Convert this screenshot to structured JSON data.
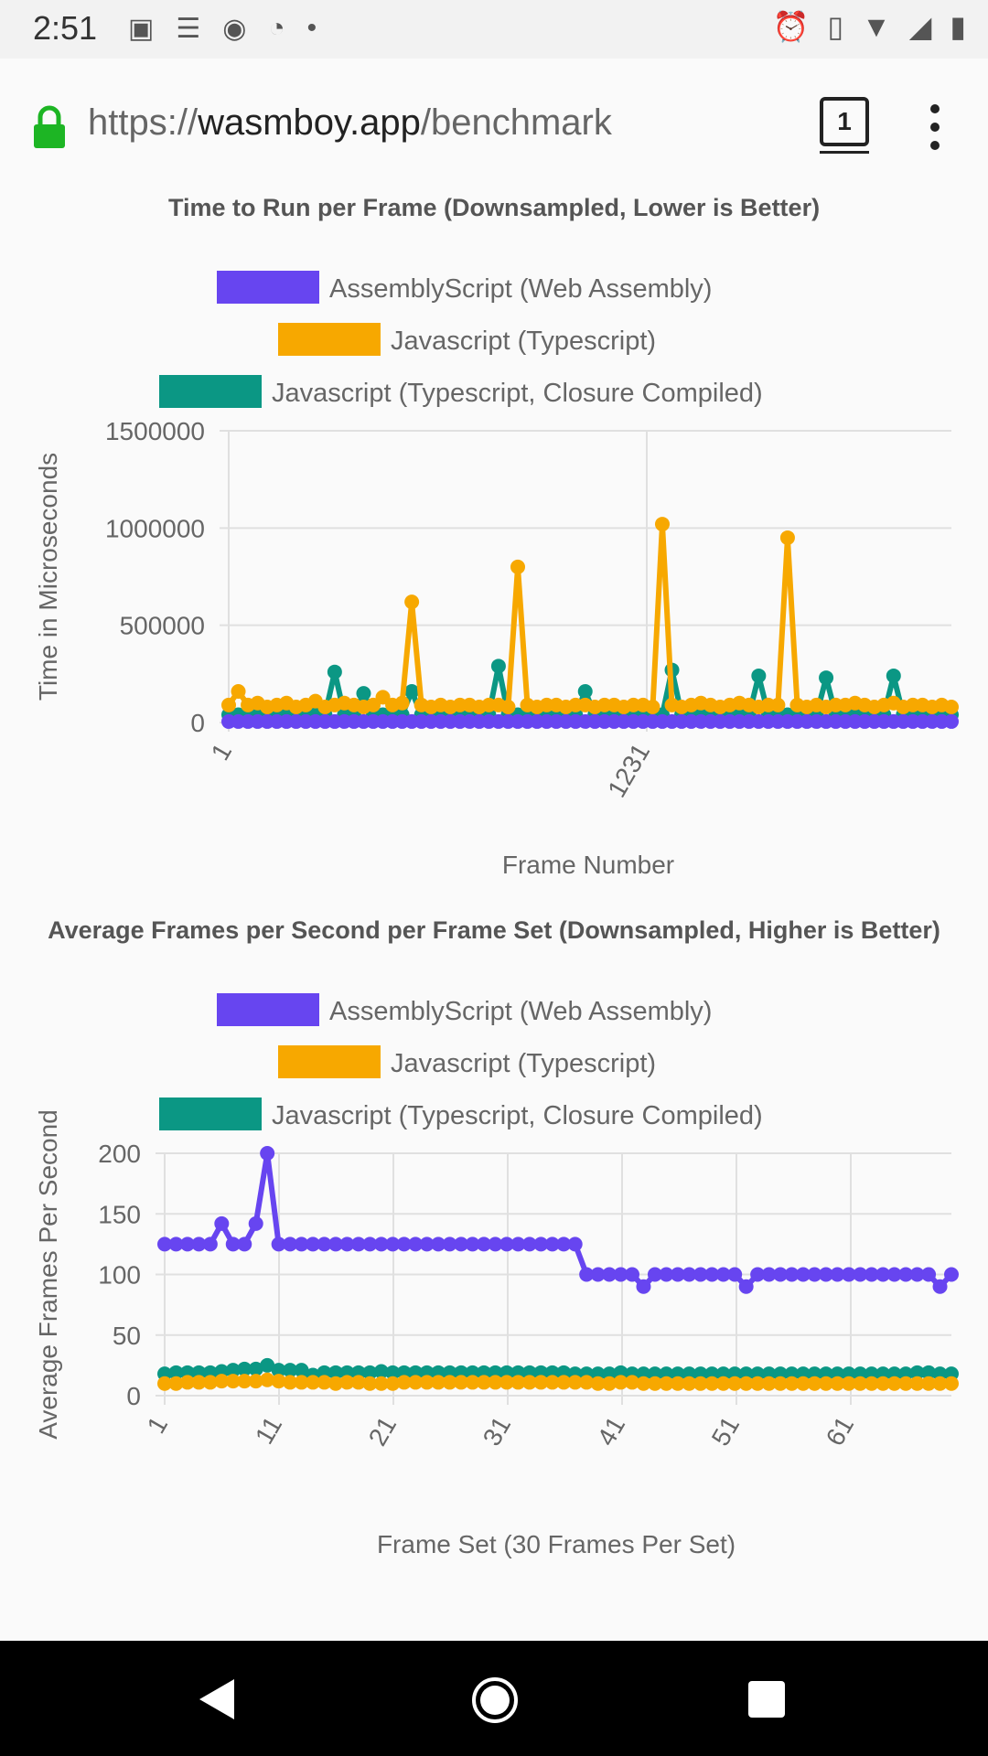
{
  "status_bar": {
    "time": "2:51",
    "left_icons": [
      "image-icon",
      "news-icon",
      "messenger-icon",
      "data-saver-icon",
      "dot-icon"
    ],
    "right_icons": [
      "alarm-icon",
      "vibrate-icon",
      "wifi-icon",
      "signal-icon",
      "battery-icon"
    ]
  },
  "browser": {
    "url_scheme": "https://",
    "url_host": "wasmboy.app",
    "url_path": "/benchmark",
    "tab_count": "1",
    "lock_color": "#1db524"
  },
  "colors": {
    "assemblyscript": "#6745f0",
    "javascript": "#f7a800",
    "closure": "#0b9784"
  },
  "chart1": {
    "title": "Time to Run per Frame (Downsampled, Lower is Better)",
    "legend": [
      "AssemblyScript (Web Assembly)",
      "Javascript (Typescript)",
      "Javascript (Typescript, Closure Compiled)"
    ],
    "ylabel": "Time in Microseconds",
    "xlabel": "Frame Number",
    "yticks": [
      "1500000",
      "1000000",
      "500000",
      "0"
    ],
    "xticks": [
      "1",
      "1231"
    ]
  },
  "chart2": {
    "title": "Average Frames per Second per Frame Set (Downsampled, Higher is Better)",
    "legend": [
      "AssemblyScript (Web Assembly)",
      "Javascript (Typescript)",
      "Javascript (Typescript, Closure Compiled)"
    ],
    "ylabel": "Average Frames Per Second",
    "xlabel": "Frame Set (30 Frames Per Set)",
    "yticks": [
      "200",
      "150",
      "100",
      "50",
      "0"
    ],
    "xticks": [
      "1",
      "11",
      "21",
      "31",
      "41",
      "51",
      "61"
    ]
  },
  "chart_data": [
    {
      "type": "line",
      "title": "Time to Run per Frame (Downsampled, Lower is Better)",
      "xlabel": "Frame Number",
      "ylabel": "Time in Microseconds",
      "ylim": [
        0,
        1500000
      ],
      "x_tick_labels": [
        "1",
        "1231"
      ],
      "legend_position": "top",
      "grid": true,
      "series": [
        {
          "name": "AssemblyScript (Web Assembly)",
          "values": [
            5000,
            5000,
            5000,
            5000,
            5000,
            5000,
            5000,
            5000,
            5000,
            5000,
            5000,
            5000,
            5000,
            5000,
            5000,
            5000,
            5000,
            5000,
            5000,
            5000,
            5000,
            5000,
            5000,
            5000,
            5000,
            5000,
            5000,
            5000,
            5000,
            5000,
            5000,
            5000,
            5000,
            5000,
            5000,
            5000,
            5000,
            5000,
            5000,
            5000,
            5000,
            5000,
            5000,
            5000,
            5000,
            5000,
            5000,
            5000,
            5000,
            5000,
            5000,
            5000,
            5000,
            5000,
            5000,
            5000,
            5000,
            5000,
            5000,
            5000,
            5000,
            5000,
            5000,
            5000,
            5000,
            5000,
            5000,
            5000,
            5000,
            5000,
            5000,
            5000,
            5000,
            5000,
            5000,
            5000
          ]
        },
        {
          "name": "Javascript (Typescript)",
          "values": [
            90000,
            160000,
            90000,
            100000,
            80000,
            90000,
            100000,
            80000,
            90000,
            110000,
            80000,
            90000,
            100000,
            90000,
            80000,
            90000,
            130000,
            90000,
            100000,
            620000,
            90000,
            80000,
            90000,
            80000,
            90000,
            90000,
            80000,
            90000,
            90000,
            80000,
            800000,
            90000,
            80000,
            90000,
            90000,
            80000,
            90000,
            90000,
            80000,
            90000,
            90000,
            80000,
            90000,
            90000,
            80000,
            1020000,
            90000,
            80000,
            90000,
            100000,
            90000,
            80000,
            90000,
            100000,
            90000,
            80000,
            90000,
            90000,
            950000,
            90000,
            80000,
            90000,
            80000,
            90000,
            90000,
            100000,
            90000,
            80000,
            90000,
            100000,
            80000,
            90000,
            90000,
            80000,
            90000,
            80000
          ]
        },
        {
          "name": "Javascript (Typescript, Closure Compiled)",
          "values": [
            40000,
            40000,
            40000,
            40000,
            40000,
            40000,
            40000,
            40000,
            40000,
            40000,
            40000,
            260000,
            40000,
            40000,
            150000,
            40000,
            40000,
            40000,
            40000,
            160000,
            40000,
            40000,
            40000,
            40000,
            40000,
            40000,
            40000,
            40000,
            290000,
            40000,
            40000,
            40000,
            40000,
            40000,
            40000,
            40000,
            40000,
            160000,
            40000,
            40000,
            40000,
            40000,
            40000,
            40000,
            40000,
            40000,
            270000,
            40000,
            40000,
            40000,
            40000,
            40000,
            40000,
            40000,
            40000,
            240000,
            40000,
            40000,
            40000,
            40000,
            40000,
            40000,
            230000,
            40000,
            40000,
            40000,
            40000,
            40000,
            40000,
            240000,
            40000,
            40000,
            40000,
            40000,
            40000,
            40000
          ]
        }
      ]
    },
    {
      "type": "line",
      "title": "Average Frames per Second per Frame Set (Downsampled, Higher is Better)",
      "xlabel": "Frame Set (30 Frames Per Set)",
      "ylabel": "Average Frames Per Second",
      "ylim": [
        0,
        200
      ],
      "x_tick_labels": [
        "1",
        "11",
        "21",
        "31",
        "41",
        "51",
        "61"
      ],
      "legend_position": "top",
      "grid": true,
      "x": [
        1,
        2,
        3,
        4,
        5,
        6,
        7,
        8,
        9,
        10,
        11,
        12,
        13,
        14,
        15,
        16,
        17,
        18,
        19,
        20,
        21,
        22,
        23,
        24,
        25,
        26,
        27,
        28,
        29,
        30,
        31,
        32,
        33,
        34,
        35,
        36,
        37,
        38,
        39,
        40,
        41,
        42,
        43,
        44,
        45,
        46,
        47,
        48,
        49,
        50,
        51,
        52,
        53,
        54,
        55,
        56,
        57,
        58,
        59,
        60,
        61,
        62,
        63,
        64,
        65,
        66,
        67,
        68,
        69,
        70
      ],
      "series": [
        {
          "name": "AssemblyScript (Web Assembly)",
          "values": [
            125,
            125,
            125,
            125,
            125,
            142,
            125,
            125,
            142,
            200,
            125,
            125,
            125,
            125,
            125,
            125,
            125,
            125,
            125,
            125,
            125,
            125,
            125,
            125,
            125,
            125,
            125,
            125,
            125,
            125,
            125,
            125,
            125,
            125,
            125,
            125,
            125,
            100,
            100,
            100,
            100,
            100,
            90,
            100,
            100,
            100,
            100,
            100,
            100,
            100,
            100,
            90,
            100,
            100,
            100,
            100,
            100,
            100,
            100,
            100,
            100,
            100,
            100,
            100,
            100,
            100,
            100,
            100,
            90,
            100
          ]
        },
        {
          "name": "Javascript (Typescript)",
          "values": [
            10,
            10,
            11,
            11,
            11,
            12,
            12,
            12,
            12,
            13,
            12,
            11,
            11,
            11,
            11,
            10,
            11,
            11,
            10,
            10,
            10,
            11,
            11,
            11,
            11,
            11,
            11,
            11,
            11,
            11,
            11,
            11,
            11,
            11,
            11,
            11,
            11,
            11,
            10,
            10,
            11,
            11,
            10,
            10,
            10,
            10,
            10,
            10,
            10,
            10,
            10,
            10,
            10,
            10,
            10,
            10,
            10,
            10,
            10,
            10,
            10,
            10,
            10,
            10,
            10,
            10,
            10,
            10,
            10,
            10
          ]
        },
        {
          "name": "Javascript (Typescript, Closure Compiled)",
          "values": [
            18,
            19,
            19,
            19,
            19,
            20,
            21,
            22,
            22,
            25,
            21,
            21,
            21,
            17,
            19,
            19,
            19,
            19,
            19,
            20,
            19,
            19,
            19,
            19,
            19,
            19,
            19,
            19,
            19,
            19,
            19,
            19,
            19,
            19,
            19,
            19,
            18,
            18,
            18,
            18,
            19,
            18,
            18,
            18,
            18,
            18,
            18,
            18,
            18,
            18,
            18,
            18,
            18,
            18,
            18,
            18,
            18,
            18,
            18,
            18,
            18,
            18,
            18,
            18,
            18,
            18,
            19,
            19,
            18,
            18
          ]
        }
      ]
    }
  ]
}
